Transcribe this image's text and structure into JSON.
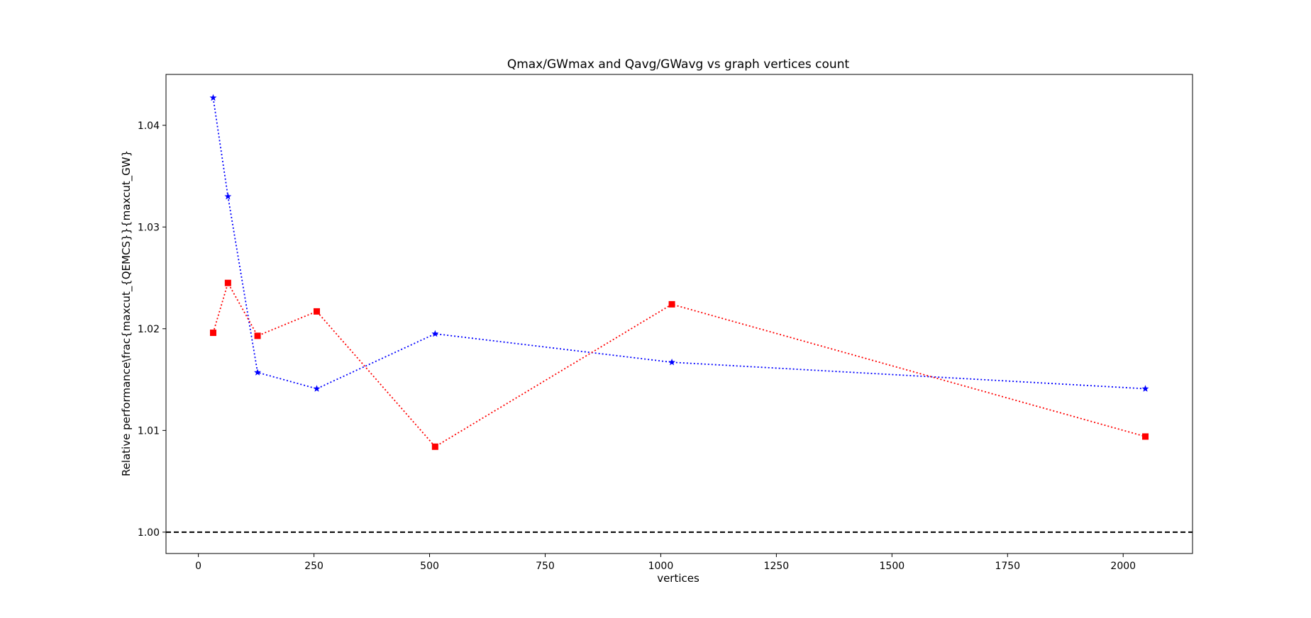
{
  "chart_data": {
    "type": "line",
    "title": "Qmax/GWmax and Qavg/GWavg vs graph vertices count",
    "xlabel": "vertices",
    "ylabel": "Relative performance\\frac{maxcut_{QEMCS}}{maxcut_GW}",
    "xlim": [
      -70,
      2150
    ],
    "ylim": [
      0.9979,
      1.045
    ],
    "xticks": [
      0,
      250,
      500,
      750,
      1000,
      1250,
      1500,
      1750,
      2000
    ],
    "yticks": [
      1.0,
      1.01,
      1.02,
      1.03,
      1.04
    ],
    "xtick_labels": [
      "0",
      "250",
      "500",
      "750",
      "1000",
      "1250",
      "1500",
      "1750",
      "2000"
    ],
    "ytick_labels": [
      "1.00",
      "1.01",
      "1.02",
      "1.03",
      "1.04"
    ],
    "grid": false,
    "legend": "none",
    "reference_line": {
      "y": 1.0,
      "style": "dashed",
      "color": "#000000"
    },
    "series": [
      {
        "color": "#0000ff",
        "marker": "star",
        "linestyle": "dotted",
        "x": [
          32,
          64,
          128,
          256,
          512,
          1024,
          2048
        ],
        "y": [
          1.0427,
          1.033,
          1.0157,
          1.0141,
          1.0195,
          1.0167,
          1.0141
        ]
      },
      {
        "color": "#ff0000",
        "marker": "square",
        "linestyle": "dotted",
        "x": [
          32,
          64,
          128,
          256,
          512,
          1024,
          2048
        ],
        "y": [
          1.0196,
          1.0245,
          1.0193,
          1.0217,
          1.0084,
          1.0224,
          1.0094
        ]
      }
    ]
  }
}
